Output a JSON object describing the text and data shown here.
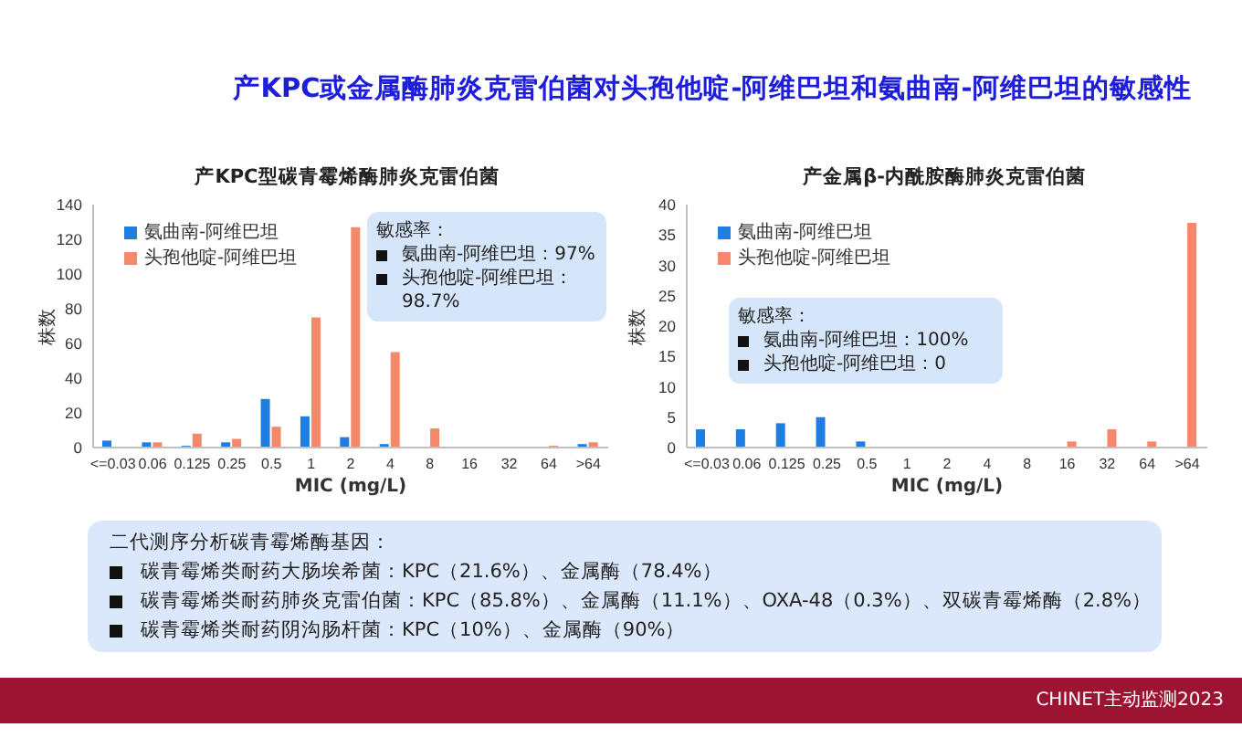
{
  "chart_data": [
    {
      "type": "other",
      "title": "产KPC或金属酶肺炎克雷伯菌对头孢他啶-阿维巴坦和氨曲南-阿维巴坦的敏感性"
    },
    {
      "type": "bar",
      "title": "产KPC型碳青霉烯酶肺炎克雷伯菌",
      "categories": [
        "<=0.03",
        "0.06",
        "0.125",
        "0.25",
        "0.5",
        "1",
        "2",
        "4",
        "8",
        "16",
        "32",
        "64",
        ">64"
      ],
      "series": [
        {
          "name": "氨曲南-阿维巴坦",
          "color": "#1f7ee0",
          "values": [
            4,
            3,
            1,
            3,
            28,
            18,
            6,
            2,
            0,
            0,
            0,
            0,
            2
          ]
        },
        {
          "name": "头孢他啶-阿维巴坦",
          "color": "#f5876b",
          "values": [
            0,
            3,
            8,
            5,
            12,
            75,
            127,
            55,
            11,
            0,
            0,
            1,
            3
          ]
        }
      ],
      "xlabel": "MIC (mg/L)",
      "ylabel": "株数",
      "ylim": [
        0,
        140
      ],
      "yticks": [
        0,
        20,
        40,
        60,
        80,
        100,
        120,
        140
      ],
      "legend": "top left",
      "annotations": [
        "敏感率：",
        "氨曲南-阿维巴坦：97%",
        "头孢他啶-阿维巴坦：98.7%"
      ]
    },
    {
      "type": "bar",
      "title": "产金属β-内酰胺酶肺炎克雷伯菌",
      "categories": [
        "<=0.03",
        "0.06",
        "0.125",
        "0.25",
        "0.5",
        "1",
        "2",
        "4",
        "8",
        "16",
        "32",
        "64",
        ">64"
      ],
      "series": [
        {
          "name": "氨曲南-阿维巴坦",
          "color": "#1f7ee0",
          "values": [
            3,
            3,
            4,
            5,
            1,
            0,
            0,
            0,
            0,
            0,
            0,
            0,
            0
          ]
        },
        {
          "name": "头孢他啶-阿维巴坦",
          "color": "#f5876b",
          "values": [
            0,
            0,
            0,
            0,
            0,
            0,
            0,
            0,
            0,
            1,
            3,
            1,
            37
          ]
        }
      ],
      "xlabel": "MIC (mg/L)",
      "ylabel": "株数",
      "ylim": [
        0,
        40
      ],
      "yticks": [
        0,
        5,
        10,
        15,
        20,
        25,
        30,
        35,
        40
      ],
      "legend": "top left",
      "annotations": [
        "敏感率：",
        "氨曲南-阿维巴坦：100%",
        "头孢他啶-阿维巴坦：0"
      ]
    },
    {
      "type": "other",
      "title": "二代测序分析碳青霉烯酶基因：",
      "annotations": [
        "碳青霉烯类耐药大肠埃希菌：KPC（21.6%）、金属酶（78.4%）",
        "碳青霉烯类耐药肺炎克雷伯菌：KPC（85.8%）、金属酶（11.1%）、OXA-48（0.3%）、双碳青霉烯酶（2.8%）",
        "碳青霉烯类耐药阴沟肠杆菌：KPC（10%）、金属酶（90%）"
      ]
    },
    {
      "type": "other",
      "annotations": [
        "CHINET主动监测2023"
      ]
    }
  ]
}
